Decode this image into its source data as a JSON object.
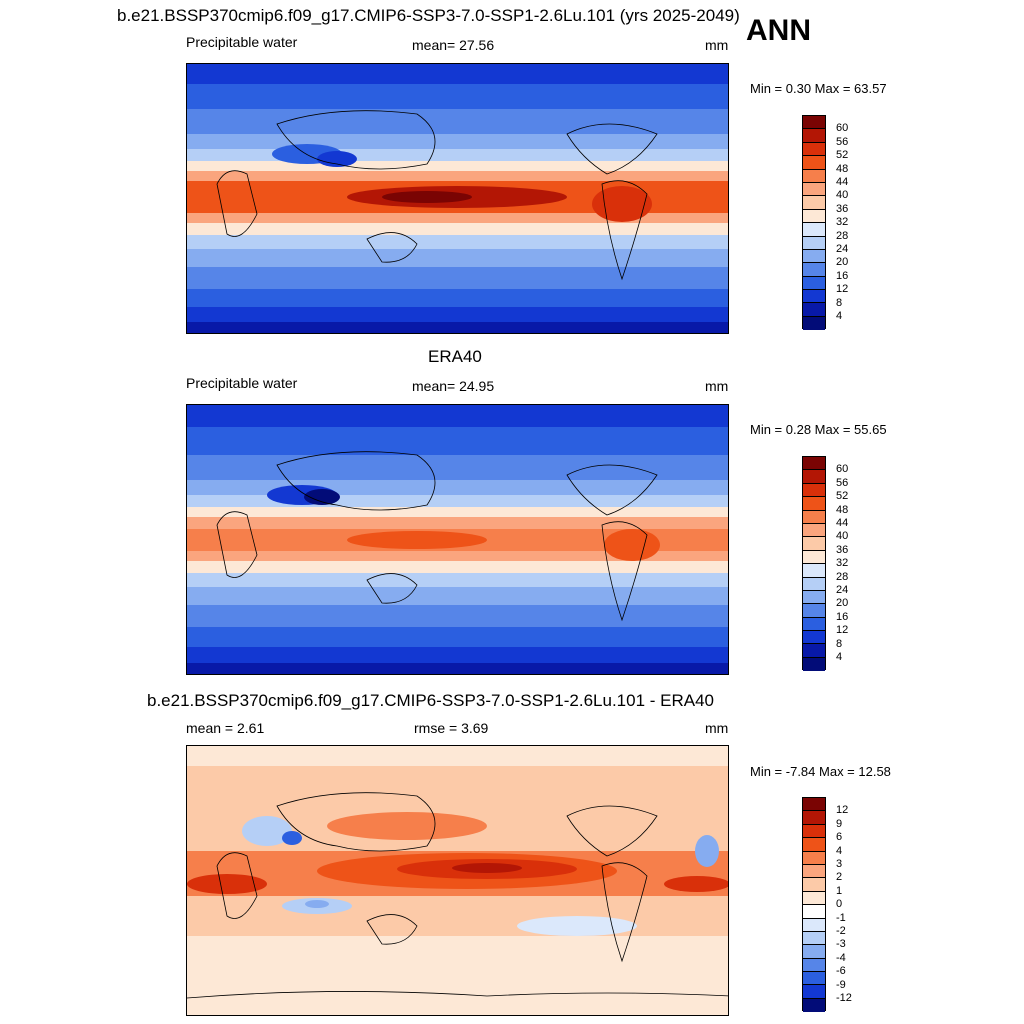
{
  "season": "ANN",
  "panels": [
    {
      "title": "b.e21.BSSP370cmip6.f09_g17.CMIP6-SSP3-7.0-SSP1-2.6Lu.101 (yrs 2025-2049)",
      "left_label": "Precipitable water",
      "center_label": "mean=  27.56",
      "units": "mm",
      "minmax": "Min =   0.30 Max =  63.57",
      "colorbar_ticks": [
        "60",
        "56",
        "52",
        "48",
        "44",
        "40",
        "36",
        "32",
        "28",
        "24",
        "20",
        "16",
        "12",
        "8",
        "4"
      ]
    },
    {
      "title": "ERA40",
      "left_label": "Precipitable water",
      "center_label": "mean=  24.95",
      "units": "mm",
      "minmax": "Min =   0.28 Max =  55.65",
      "colorbar_ticks": [
        "60",
        "56",
        "52",
        "48",
        "44",
        "40",
        "36",
        "32",
        "28",
        "24",
        "20",
        "16",
        "12",
        "8",
        "4"
      ]
    },
    {
      "title": "b.e21.BSSP370cmip6.f09_g17.CMIP6-SSP3-7.0-SSP1-2.6Lu.101 - ERA40",
      "left_label": "mean =   2.61",
      "center_label": "rmse =   3.69",
      "units": "mm",
      "minmax": "Min =  -7.84 Max =  12.58",
      "colorbar_ticks": [
        "12",
        "9",
        "6",
        "4",
        "3",
        "2",
        "1",
        "0",
        "-1",
        "-2",
        "-3",
        "-4",
        "-6",
        "-9",
        "-12"
      ]
    }
  ],
  "colors": {
    "abs_scale": [
      "#7a0403",
      "#b31605",
      "#d9300a",
      "#ee5318",
      "#f67f4b",
      "#faa57e",
      "#fccaa8",
      "#fde8d6",
      "#dbe8fb",
      "#b5cff6",
      "#86acf0",
      "#5685e8",
      "#2b5fe0",
      "#1338d2",
      "#0819a8",
      "#020c78"
    ],
    "diff_scale": [
      "#7a0403",
      "#b31605",
      "#d9300a",
      "#ee5318",
      "#f67f4b",
      "#faa57e",
      "#fccaa8",
      "#fde8d6",
      "#ffffff",
      "#dbe8fb",
      "#b5cff6",
      "#86acf0",
      "#5685e8",
      "#2b5fe0",
      "#1338d2",
      "#020c78"
    ]
  }
}
